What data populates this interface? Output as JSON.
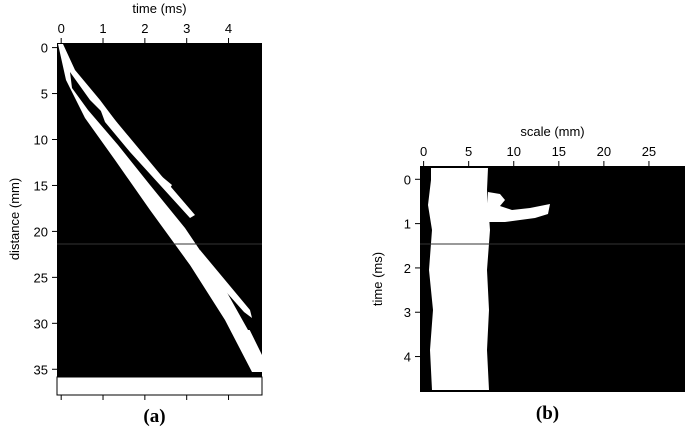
{
  "chart_data": [
    {
      "type": "image",
      "xlabel": "time (ms)",
      "ylabel": "distance (mm)",
      "panel_label": "(a)",
      "xlim": [
        -0.1,
        4.8
      ],
      "ylim": [
        -0.5,
        37.8
      ],
      "xticks": [
        0,
        1,
        2,
        3,
        4
      ],
      "yticks": [
        0,
        5,
        10,
        15,
        20,
        25,
        30,
        35
      ],
      "x_axis": "top",
      "y_inverted": true,
      "bottom_axis_ticks": true
    },
    {
      "type": "image",
      "xlabel": "scale (mm)",
      "ylabel": "time (ms)",
      "panel_label": "(b)",
      "xlim": [
        -0.4,
        29
      ],
      "ylim": [
        -0.3,
        4.8
      ],
      "xticks": [
        0,
        5,
        10,
        15,
        20,
        25
      ],
      "yticks": [
        0,
        1,
        2,
        3,
        4
      ],
      "x_axis": "top",
      "y_inverted": true,
      "bottom_axis_ticks": false
    }
  ]
}
